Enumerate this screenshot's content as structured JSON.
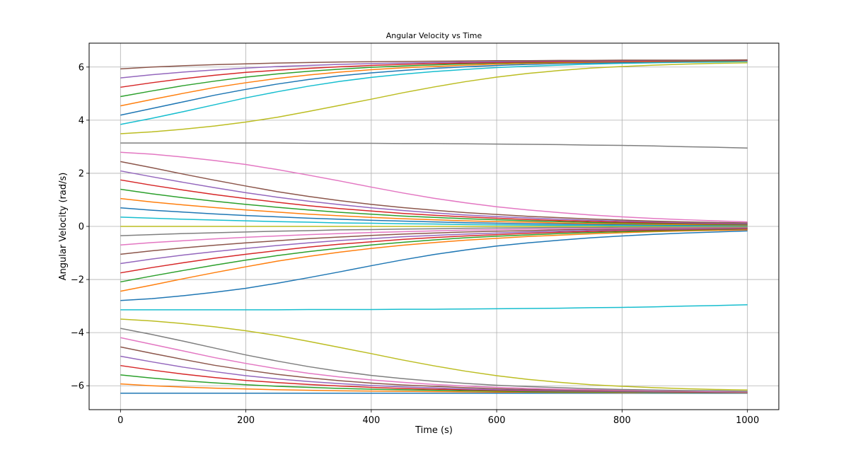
{
  "chart_data": {
    "type": "line",
    "title": "Angular Velocity vs Time",
    "xlabel": "Time (s)",
    "ylabel": "Angular Velocity (rad/s)",
    "xlim": [
      -50,
      1050
    ],
    "ylim": [
      -6.9,
      6.9
    ],
    "x_ticks": [
      0,
      200,
      400,
      600,
      800,
      1000
    ],
    "x_tick_labels": [
      "0",
      "200",
      "400",
      "600",
      "800",
      "1000"
    ],
    "y_ticks": [
      -6,
      -4,
      -2,
      0,
      2,
      4,
      6
    ],
    "y_tick_labels": [
      "−6",
      "−4",
      "−2",
      "0",
      "2",
      "4",
      "6"
    ],
    "grid": true,
    "x": [
      0,
      50,
      100,
      150,
      200,
      250,
      300,
      350,
      400,
      450,
      500,
      550,
      600,
      650,
      700,
      750,
      800,
      850,
      900,
      950,
      1000
    ],
    "series": [
      {
        "color": "#1f77b4",
        "values": [
          -6.28,
          -6.28,
          -6.28,
          -6.28,
          -6.28,
          -6.28,
          -6.28,
          -6.28,
          -6.28,
          -6.28,
          -6.28,
          -6.28,
          -6.28,
          -6.28,
          -6.28,
          -6.28,
          -6.28,
          -6.28,
          -6.28,
          -6.28,
          -6.28
        ]
      },
      {
        "color": "#ff7f0e",
        "values": [
          -5.93,
          -6.0,
          -6.05,
          -6.09,
          -6.12,
          -6.15,
          -6.17,
          -6.19,
          -6.2,
          -6.21,
          -6.22,
          -6.23,
          -6.24,
          -6.24,
          -6.25,
          -6.25,
          -6.26,
          -6.26,
          -6.26,
          -6.26,
          -6.27
        ]
      },
      {
        "color": "#2ca02c",
        "values": [
          -5.59,
          -5.71,
          -5.81,
          -5.89,
          -5.96,
          -6.02,
          -6.06,
          -6.1,
          -6.13,
          -6.15,
          -6.17,
          -6.19,
          -6.2,
          -6.22,
          -6.23,
          -6.23,
          -6.24,
          -6.25,
          -6.25,
          -6.26,
          -6.26
        ]
      },
      {
        "color": "#d62728",
        "values": [
          -5.24,
          -5.41,
          -5.56,
          -5.69,
          -5.8,
          -5.88,
          -5.95,
          -6.01,
          -6.06,
          -6.1,
          -6.13,
          -6.15,
          -6.17,
          -6.19,
          -6.2,
          -6.21,
          -6.22,
          -6.23,
          -6.24,
          -6.25,
          -6.25
        ]
      },
      {
        "color": "#9467bd",
        "values": [
          -4.89,
          -5.1,
          -5.3,
          -5.47,
          -5.62,
          -5.74,
          -5.84,
          -5.92,
          -5.99,
          -6.04,
          -6.08,
          -6.12,
          -6.15,
          -6.17,
          -6.19,
          -6.2,
          -6.22,
          -6.23,
          -6.23,
          -6.24,
          -6.25
        ]
      },
      {
        "color": "#8c564b",
        "values": [
          -4.54,
          -4.78,
          -5.01,
          -5.23,
          -5.41,
          -5.57,
          -5.7,
          -5.81,
          -5.9,
          -5.97,
          -6.02,
          -6.07,
          -6.11,
          -6.14,
          -6.16,
          -6.18,
          -6.2,
          -6.21,
          -6.22,
          -6.23,
          -6.24
        ]
      },
      {
        "color": "#e377c2",
        "values": [
          -4.19,
          -4.44,
          -4.69,
          -4.94,
          -5.16,
          -5.36,
          -5.53,
          -5.67,
          -5.78,
          -5.87,
          -5.95,
          -6.01,
          -6.06,
          -6.1,
          -6.13,
          -6.15,
          -6.17,
          -6.19,
          -6.2,
          -6.22,
          -6.23
        ]
      },
      {
        "color": "#7f7f7f",
        "values": [
          -3.84,
          -4.07,
          -4.32,
          -4.58,
          -4.84,
          -5.07,
          -5.28,
          -5.46,
          -5.61,
          -5.73,
          -5.83,
          -5.91,
          -5.98,
          -6.03,
          -6.07,
          -6.11,
          -6.14,
          -6.16,
          -6.18,
          -6.19,
          -6.21
        ]
      },
      {
        "color": "#bcbd22",
        "values": [
          -3.49,
          -3.56,
          -3.66,
          -3.78,
          -3.93,
          -4.11,
          -4.33,
          -4.56,
          -4.79,
          -5.03,
          -5.25,
          -5.45,
          -5.62,
          -5.76,
          -5.87,
          -5.96,
          -6.02,
          -6.07,
          -6.11,
          -6.14,
          -6.16
        ]
      },
      {
        "color": "#17becf",
        "values": [
          -3.14,
          -3.14,
          -3.14,
          -3.14,
          -3.14,
          -3.14,
          -3.13,
          -3.13,
          -3.13,
          -3.12,
          -3.12,
          -3.11,
          -3.1,
          -3.09,
          -3.08,
          -3.06,
          -3.05,
          -3.03,
          -3.0,
          -2.98,
          -2.95
        ]
      },
      {
        "color": "#1f77b4",
        "values": [
          -2.79,
          -2.72,
          -2.61,
          -2.48,
          -2.33,
          -2.14,
          -1.93,
          -1.71,
          -1.48,
          -1.26,
          -1.06,
          -0.89,
          -0.74,
          -0.62,
          -0.52,
          -0.43,
          -0.36,
          -0.3,
          -0.25,
          -0.21,
          -0.17
        ]
      },
      {
        "color": "#ff7f0e",
        "values": [
          -2.44,
          -2.21,
          -1.97,
          -1.74,
          -1.52,
          -1.31,
          -1.13,
          -0.97,
          -0.83,
          -0.71,
          -0.61,
          -0.52,
          -0.45,
          -0.38,
          -0.33,
          -0.28,
          -0.24,
          -0.2,
          -0.17,
          -0.15,
          -0.13
        ]
      },
      {
        "color": "#2ca02c",
        "values": [
          -2.09,
          -1.87,
          -1.66,
          -1.46,
          -1.27,
          -1.1,
          -0.95,
          -0.82,
          -0.7,
          -0.6,
          -0.51,
          -0.43,
          -0.37,
          -0.32,
          -0.27,
          -0.23,
          -0.2,
          -0.17,
          -0.14,
          -0.12,
          -0.1
        ]
      },
      {
        "color": "#d62728",
        "values": [
          -1.75,
          -1.55,
          -1.37,
          -1.2,
          -1.05,
          -0.91,
          -0.78,
          -0.67,
          -0.58,
          -0.49,
          -0.42,
          -0.36,
          -0.31,
          -0.26,
          -0.22,
          -0.19,
          -0.16,
          -0.14,
          -0.12,
          -0.1,
          -0.09
        ]
      },
      {
        "color": "#9467bd",
        "values": [
          -1.4,
          -1.23,
          -1.08,
          -0.95,
          -0.83,
          -0.72,
          -0.62,
          -0.53,
          -0.46,
          -0.39,
          -0.34,
          -0.29,
          -0.25,
          -0.21,
          -0.18,
          -0.15,
          -0.13,
          -0.11,
          -0.1,
          -0.08,
          -0.07
        ]
      },
      {
        "color": "#8c564b",
        "values": [
          -1.05,
          -0.92,
          -0.81,
          -0.71,
          -0.62,
          -0.54,
          -0.46,
          -0.4,
          -0.34,
          -0.29,
          -0.25,
          -0.21,
          -0.18,
          -0.16,
          -0.13,
          -0.11,
          -0.1,
          -0.08,
          -0.07,
          -0.06,
          -0.05
        ]
      },
      {
        "color": "#e377c2",
        "values": [
          -0.7,
          -0.61,
          -0.54,
          -0.47,
          -0.41,
          -0.36,
          -0.31,
          -0.27,
          -0.23,
          -0.2,
          -0.17,
          -0.14,
          -0.12,
          -0.1,
          -0.09,
          -0.08,
          -0.07,
          -0.06,
          -0.05,
          -0.04,
          -0.03
        ]
      },
      {
        "color": "#7f7f7f",
        "values": [
          -0.35,
          -0.31,
          -0.27,
          -0.24,
          -0.21,
          -0.18,
          -0.16,
          -0.13,
          -0.12,
          -0.1,
          -0.09,
          -0.07,
          -0.06,
          -0.05,
          -0.04,
          -0.04,
          -0.03,
          -0.03,
          -0.02,
          -0.02,
          -0.02
        ]
      },
      {
        "color": "#bcbd22",
        "values": [
          0.0,
          0.0,
          0.0,
          0.0,
          0.0,
          0.0,
          0.0,
          0.0,
          0.0,
          0.0,
          0.0,
          0.0,
          0.0,
          0.0,
          0.0,
          0.0,
          0.0,
          0.0,
          0.0,
          0.0,
          0.0
        ]
      },
      {
        "color": "#17becf",
        "values": [
          0.35,
          0.31,
          0.27,
          0.24,
          0.21,
          0.18,
          0.16,
          0.13,
          0.12,
          0.1,
          0.09,
          0.07,
          0.06,
          0.05,
          0.04,
          0.04,
          0.03,
          0.03,
          0.02,
          0.02,
          0.02
        ]
      },
      {
        "color": "#1f77b4",
        "values": [
          0.7,
          0.61,
          0.54,
          0.47,
          0.41,
          0.36,
          0.31,
          0.27,
          0.23,
          0.2,
          0.17,
          0.14,
          0.12,
          0.1,
          0.09,
          0.08,
          0.07,
          0.06,
          0.05,
          0.04,
          0.03
        ]
      },
      {
        "color": "#ff7f0e",
        "values": [
          1.05,
          0.92,
          0.81,
          0.71,
          0.62,
          0.54,
          0.46,
          0.4,
          0.34,
          0.29,
          0.25,
          0.21,
          0.18,
          0.16,
          0.13,
          0.11,
          0.1,
          0.08,
          0.07,
          0.06,
          0.05
        ]
      },
      {
        "color": "#2ca02c",
        "values": [
          1.4,
          1.23,
          1.08,
          0.95,
          0.83,
          0.72,
          0.62,
          0.53,
          0.46,
          0.39,
          0.34,
          0.29,
          0.25,
          0.21,
          0.18,
          0.15,
          0.13,
          0.11,
          0.1,
          0.08,
          0.07
        ]
      },
      {
        "color": "#d62728",
        "values": [
          1.75,
          1.55,
          1.37,
          1.2,
          1.05,
          0.91,
          0.78,
          0.67,
          0.58,
          0.49,
          0.42,
          0.36,
          0.31,
          0.26,
          0.22,
          0.19,
          0.16,
          0.14,
          0.12,
          0.1,
          0.09
        ]
      },
      {
        "color": "#9467bd",
        "values": [
          2.09,
          1.87,
          1.66,
          1.46,
          1.27,
          1.1,
          0.95,
          0.82,
          0.7,
          0.6,
          0.51,
          0.43,
          0.37,
          0.32,
          0.27,
          0.23,
          0.2,
          0.17,
          0.14,
          0.12,
          0.1
        ]
      },
      {
        "color": "#8c564b",
        "values": [
          2.44,
          2.21,
          1.97,
          1.74,
          1.52,
          1.31,
          1.13,
          0.97,
          0.83,
          0.71,
          0.61,
          0.52,
          0.45,
          0.38,
          0.33,
          0.28,
          0.24,
          0.2,
          0.17,
          0.15,
          0.13
        ]
      },
      {
        "color": "#e377c2",
        "values": [
          2.79,
          2.72,
          2.61,
          2.48,
          2.33,
          2.14,
          1.93,
          1.71,
          1.48,
          1.26,
          1.06,
          0.89,
          0.74,
          0.62,
          0.52,
          0.43,
          0.36,
          0.3,
          0.25,
          0.21,
          0.17
        ]
      },
      {
        "color": "#7f7f7f",
        "values": [
          3.14,
          3.14,
          3.14,
          3.14,
          3.14,
          3.14,
          3.13,
          3.13,
          3.13,
          3.12,
          3.12,
          3.11,
          3.1,
          3.09,
          3.08,
          3.06,
          3.05,
          3.03,
          3.0,
          2.98,
          2.95
        ]
      },
      {
        "color": "#bcbd22",
        "values": [
          3.49,
          3.56,
          3.66,
          3.78,
          3.93,
          4.11,
          4.33,
          4.56,
          4.79,
          5.03,
          5.25,
          5.45,
          5.62,
          5.76,
          5.87,
          5.96,
          6.02,
          6.07,
          6.11,
          6.14,
          6.16
        ]
      },
      {
        "color": "#17becf",
        "values": [
          3.84,
          4.07,
          4.32,
          4.58,
          4.84,
          5.07,
          5.28,
          5.46,
          5.61,
          5.73,
          5.83,
          5.91,
          5.98,
          6.03,
          6.07,
          6.11,
          6.14,
          6.16,
          6.18,
          6.19,
          6.21
        ]
      },
      {
        "color": "#1f77b4",
        "values": [
          4.19,
          4.44,
          4.69,
          4.94,
          5.16,
          5.36,
          5.53,
          5.67,
          5.78,
          5.87,
          5.95,
          6.01,
          6.06,
          6.1,
          6.13,
          6.15,
          6.17,
          6.19,
          6.2,
          6.22,
          6.23
        ]
      },
      {
        "color": "#ff7f0e",
        "values": [
          4.54,
          4.78,
          5.01,
          5.23,
          5.41,
          5.57,
          5.7,
          5.81,
          5.9,
          5.97,
          6.02,
          6.07,
          6.11,
          6.14,
          6.16,
          6.18,
          6.2,
          6.21,
          6.22,
          6.23,
          6.24
        ]
      },
      {
        "color": "#2ca02c",
        "values": [
          4.89,
          5.1,
          5.3,
          5.47,
          5.62,
          5.74,
          5.84,
          5.92,
          5.99,
          6.04,
          6.08,
          6.12,
          6.15,
          6.17,
          6.19,
          6.2,
          6.22,
          6.23,
          6.23,
          6.24,
          6.25
        ]
      },
      {
        "color": "#d62728",
        "values": [
          5.24,
          5.41,
          5.56,
          5.69,
          5.8,
          5.88,
          5.95,
          6.01,
          6.06,
          6.1,
          6.13,
          6.15,
          6.17,
          6.19,
          6.2,
          6.21,
          6.22,
          6.23,
          6.24,
          6.25,
          6.25
        ]
      },
      {
        "color": "#9467bd",
        "values": [
          5.59,
          5.71,
          5.81,
          5.89,
          5.96,
          6.02,
          6.06,
          6.1,
          6.13,
          6.15,
          6.17,
          6.19,
          6.2,
          6.22,
          6.23,
          6.23,
          6.24,
          6.25,
          6.25,
          6.26,
          6.26
        ]
      },
      {
        "color": "#8c564b",
        "values": [
          5.93,
          6.0,
          6.05,
          6.09,
          6.12,
          6.15,
          6.17,
          6.19,
          6.2,
          6.21,
          6.22,
          6.23,
          6.24,
          6.24,
          6.25,
          6.25,
          6.26,
          6.26,
          6.26,
          6.26,
          6.27
        ]
      }
    ]
  }
}
